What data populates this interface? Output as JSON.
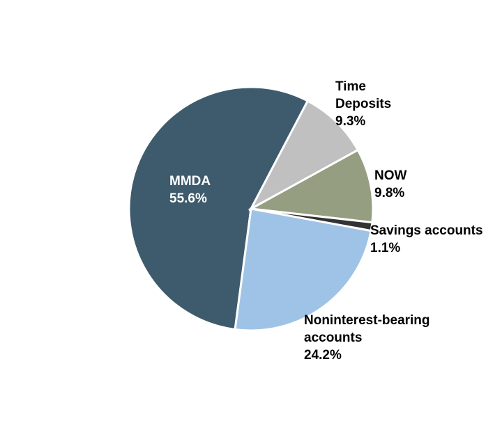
{
  "chart_data": {
    "type": "pie",
    "start_angle_deg": 0,
    "direction": "counterclockwise",
    "slices": [
      {
        "name": "MMDA",
        "label_lines": [
          "MMDA",
          "55.6%"
        ],
        "value": 55.6,
        "color": "#3e5b6d",
        "label_color": "#ffffff",
        "label_position": "inside"
      },
      {
        "name": "Time Deposits",
        "label_lines": [
          "Time",
          "Deposits",
          "9.3%"
        ],
        "value": 9.3,
        "color": "#c0c0c0",
        "label_color": "#000000",
        "label_position": "outside"
      },
      {
        "name": "NOW",
        "label_lines": [
          "NOW",
          "9.8%"
        ],
        "value": 9.8,
        "color": "#969e82",
        "label_color": "#000000",
        "label_position": "outside"
      },
      {
        "name": "Savings accounts",
        "label_lines": [
          "Savings accounts",
          "1.1%"
        ],
        "value": 1.1,
        "color": "#333333",
        "label_color": "#000000",
        "label_position": "outside"
      },
      {
        "name": "Noninterest-bearing accounts",
        "label_lines": [
          "Noninterest-bearing",
          "accounts",
          "24.2%"
        ],
        "value": 24.2,
        "color": "#9fc3e6",
        "label_color": "#000000",
        "label_position": "outside"
      }
    ]
  }
}
